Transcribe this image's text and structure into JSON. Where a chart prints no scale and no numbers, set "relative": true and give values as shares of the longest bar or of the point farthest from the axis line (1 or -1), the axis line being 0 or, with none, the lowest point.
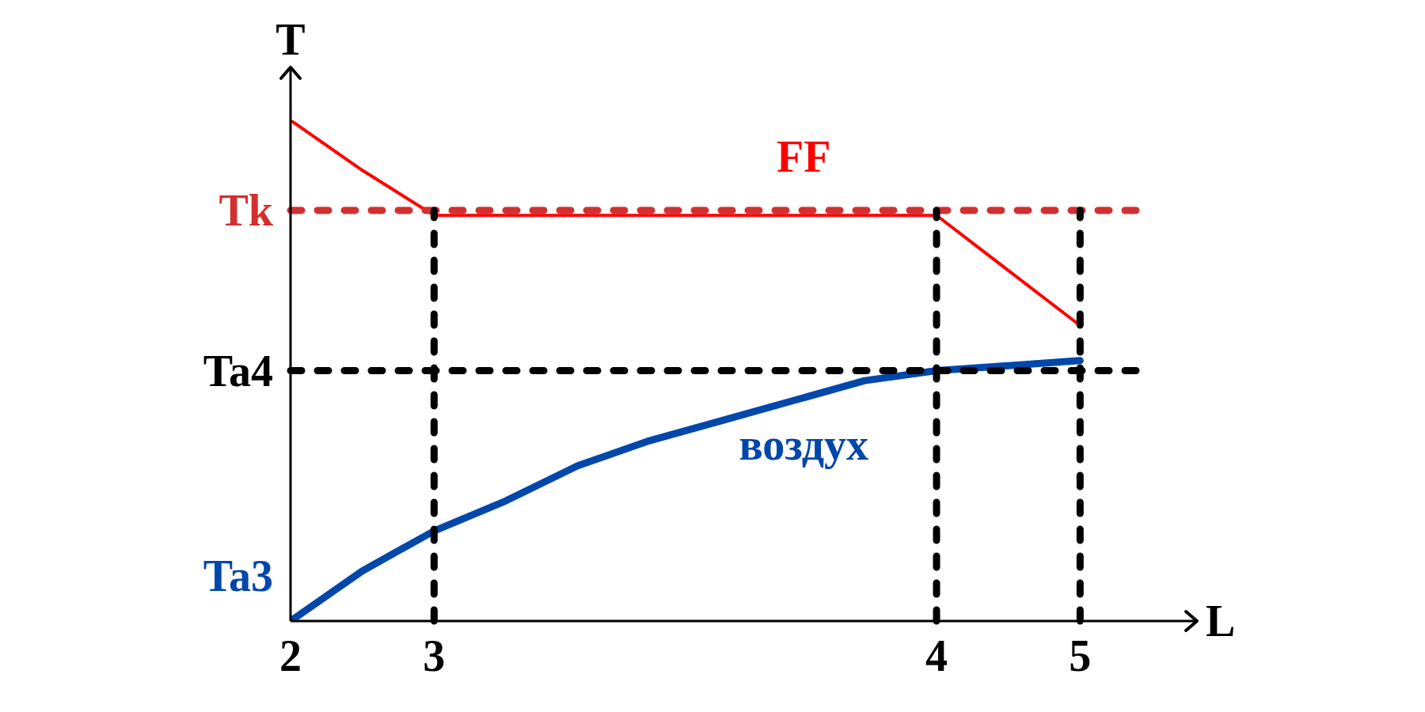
{
  "chart_data": {
    "type": "line",
    "relative": true,
    "xlabel": "L",
    "ylabel": "T",
    "categories": [
      "2",
      null,
      "3",
      null,
      null,
      null,
      null,
      null,
      null,
      "4",
      null,
      "5",
      null
    ],
    "series": [
      {
        "name": "FF",
        "color": "#ff0000",
        "values": [
          1,
          0.9,
          0.81,
          0.81,
          0.81,
          0.81,
          0.81,
          0.81,
          0.81,
          0.81,
          0.7,
          0.59,
          null
        ]
      },
      {
        "name": "воздух",
        "color": "#0047ab",
        "values": [
          0,
          0.1,
          0.18,
          0.24,
          0.31,
          0.36,
          0.4,
          0.44,
          0.48,
          0.5,
          0.51,
          0.52,
          null
        ]
      }
    ],
    "ref_lines": [
      {
        "axis": "y",
        "value": 0.82,
        "label": "Tk",
        "color": "#d32f2f",
        "line_style": "dashed"
      },
      {
        "axis": "y",
        "value": 0.5,
        "label": "Ta4",
        "color": "#000000",
        "line_style": "dashed"
      },
      {
        "axis": "x",
        "value": "3",
        "color": "#000000",
        "line_style": "dashed"
      },
      {
        "axis": "x",
        "value": "4",
        "color": "#000000",
        "line_style": "dashed"
      },
      {
        "axis": "x",
        "value": "5",
        "color": "#000000",
        "line_style": "dashed"
      }
    ],
    "annotations": [
      {
        "text": "Ta3",
        "x": "2",
        "y": 0
      }
    ]
  }
}
